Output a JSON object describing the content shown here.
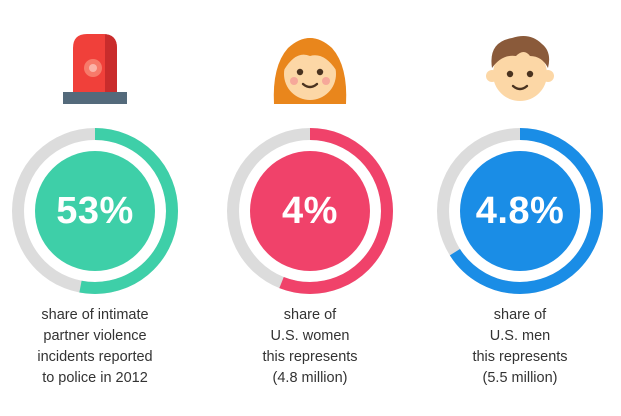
{
  "chart_data": [
    {
      "type": "pie",
      "value": 53,
      "value_label": "53%",
      "caption": [
        "share of intimate",
        "partner violence",
        "incidents reported",
        "to police in 2012"
      ],
      "icon": "siren-icon",
      "color": "#3ecfa8",
      "track_color": "#dcdcdc"
    },
    {
      "type": "pie",
      "value": 4,
      "ring_fill": 56,
      "value_label": "4%",
      "caption": [
        "share of",
        "U.S. women",
        "this represents",
        "(4.8 million)"
      ],
      "icon": "woman-face-icon",
      "color": "#f0426a",
      "track_color": "#dcdcdc"
    },
    {
      "type": "pie",
      "value": 4.8,
      "ring_fill": 66,
      "value_label": "4.8%",
      "caption": [
        "share of",
        "U.S. men",
        "this represents",
        "(5.5 million)"
      ],
      "icon": "man-face-icon",
      "color": "#1a8de6",
      "track_color": "#dcdcdc"
    }
  ]
}
